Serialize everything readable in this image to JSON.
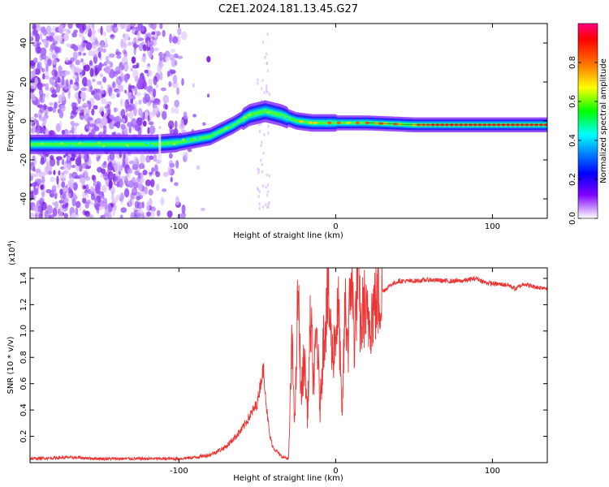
{
  "title": "C2E1.2024.181.13.45.G27",
  "chart_data": [
    {
      "type": "heatmap",
      "xlabel": "Height of straight line (km)",
      "ylabel": "Frequency (Hz)",
      "xlim": [
        -195,
        135
      ],
      "ylim": [
        -50,
        50
      ],
      "xticks": [
        -100,
        0,
        100
      ],
      "xtick_labels": [
        "-100",
        "0",
        "100"
      ],
      "yticks": [
        -40,
        -20,
        0,
        20,
        40
      ],
      "ytick_labels": [
        "-40",
        "-20",
        "0",
        "20",
        "40"
      ],
      "colorbar": {
        "label": "Normalized spectral amplitude",
        "range": [
          0,
          1
        ],
        "ticks": [
          0.0,
          0.2,
          0.4,
          0.6,
          0.8
        ],
        "tick_labels": [
          "0.0",
          "0.2",
          "0.4",
          "0.6",
          "0.8"
        ],
        "colors": [
          "#ff0080",
          "#ff0000",
          "#ff8000",
          "#ffff00",
          "#00ff00",
          "#00ffff",
          "#0080ff",
          "#0000ff",
          "#8000ff",
          "#ffffff"
        ]
      },
      "trace": {
        "x": [
          -195,
          -150,
          -115,
          -100,
          -80,
          -65,
          -55,
          -45,
          -35,
          -25,
          -15,
          0,
          20,
          50,
          80,
          110,
          135
        ],
        "y": [
          -12,
          -12,
          -12,
          -11,
          -8,
          -2,
          3,
          5,
          3,
          0,
          -1,
          -1,
          -1,
          -2,
          -2,
          -2,
          -2
        ]
      },
      "noise_region_x": [
        -195,
        -95
      ]
    },
    {
      "type": "line",
      "xlabel": "Height of straight line (km)",
      "ylabel": "SNR (10 * v/v)",
      "y_multiplier": "(x10",
      "y_multiplier_exp": "4",
      "y_multiplier_close": ")",
      "xlim": [
        -195,
        135
      ],
      "ylim": [
        0,
        1.48
      ],
      "xticks": [
        -100,
        0,
        100
      ],
      "xtick_labels": [
        "-100",
        "0",
        "100"
      ],
      "yticks": [
        0.2,
        0.4,
        0.6,
        0.8,
        1.0,
        1.2,
        1.4
      ],
      "ytick_labels": [
        "0.2",
        "0.4",
        "0.6",
        "0.8",
        "1.0",
        "1.2",
        "1.4"
      ],
      "color": "#ee3333",
      "series": {
        "x": [
          -195,
          -170,
          -150,
          -120,
          -100,
          -90,
          -80,
          -70,
          -60,
          -55,
          -50,
          -48,
          -46,
          -44,
          -42,
          -40,
          -35,
          -30,
          -28,
          -26,
          -24,
          -22,
          -20,
          -18,
          -16,
          -14,
          -12,
          -10,
          -8,
          -5,
          -2,
          0,
          2,
          4,
          6,
          8,
          10,
          12,
          14,
          16,
          18,
          20,
          25,
          30,
          35,
          40,
          50,
          60,
          70,
          80,
          90,
          95,
          100,
          110,
          115,
          120,
          125,
          130,
          135
        ],
        "y": [
          0.03,
          0.04,
          0.03,
          0.03,
          0.03,
          0.04,
          0.06,
          0.12,
          0.25,
          0.35,
          0.45,
          0.6,
          0.72,
          0.4,
          0.2,
          0.12,
          0.05,
          0.03,
          0.9,
          0.3,
          1.3,
          0.5,
          0.8,
          0.35,
          1.1,
          0.6,
          1.0,
          0.4,
          0.9,
          1.3,
          0.8,
          1.0,
          1.15,
          0.3,
          1.2,
          0.9,
          1.48,
          0.9,
          1.45,
          1.0,
          1.2,
          1.05,
          1.2,
          1.3,
          1.35,
          1.38,
          1.38,
          1.39,
          1.38,
          1.38,
          1.4,
          1.37,
          1.36,
          1.35,
          1.32,
          1.36,
          1.34,
          1.33,
          1.33
        ]
      }
    }
  ]
}
